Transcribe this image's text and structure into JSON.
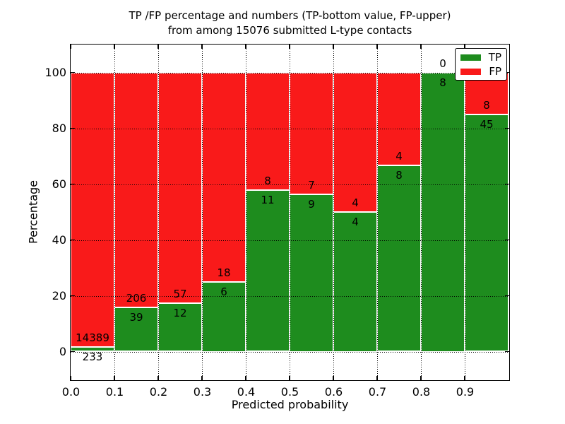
{
  "figure": {
    "title_line1": "TP /FP percentage and numbers (TP-bottom value, FP-upper)",
    "title_line2": "from among 15076 submitted L-type contacts",
    "xlabel": "Predicted probability",
    "ylabel": "Percentage"
  },
  "chart_data": {
    "type": "bar",
    "stacked": true,
    "normalized": "each bin scaled so TP+FP = 100%",
    "title": "TP /FP percentage and numbers (TP-bottom value, FP-upper)\nfrom among 15076 submitted L-type contacts",
    "xlabel": "Predicted probability",
    "ylabel": "Percentage",
    "total_submitted": 15076,
    "xlim": [
      0.0,
      1.0
    ],
    "ylim": [
      -10,
      110
    ],
    "grid": true,
    "grid_style": "dotted",
    "bin_width": 0.1,
    "bin_starts": [
      0.0,
      0.1,
      0.2,
      0.3,
      0.4,
      0.5,
      0.6,
      0.7,
      0.8,
      0.9
    ],
    "xtick_values": [
      0.0,
      0.1,
      0.2,
      0.3,
      0.4,
      0.5,
      0.6,
      0.7,
      0.8,
      0.9
    ],
    "xtick_labels": [
      "0.0",
      "0.1",
      "0.2",
      "0.3",
      "0.4",
      "0.5",
      "0.6",
      "0.7",
      "0.8",
      "0.9"
    ],
    "ytick_values": [
      0,
      20,
      40,
      60,
      80,
      100
    ],
    "ytick_labels": [
      "0",
      "20",
      "40",
      "60",
      "80",
      "100"
    ],
    "series": [
      {
        "name": "TP",
        "color": "#1e8c1e",
        "counts": [
          233,
          39,
          12,
          6,
          11,
          9,
          4,
          8,
          8,
          45
        ]
      },
      {
        "name": "FP",
        "color": "#f91a1a",
        "counts": [
          14389,
          206,
          57,
          18,
          8,
          7,
          4,
          4,
          0,
          8
        ]
      }
    ],
    "tp_percent_per_bin": [
      1.6,
      15.9,
      17.4,
      25.0,
      57.9,
      56.3,
      50.0,
      66.7,
      100.0,
      84.9
    ],
    "legend": {
      "position": "upper right",
      "entries": [
        {
          "label": "TP",
          "color": "#1e8c1e"
        },
        {
          "label": "FP",
          "color": "#f91a1a"
        }
      ]
    }
  }
}
